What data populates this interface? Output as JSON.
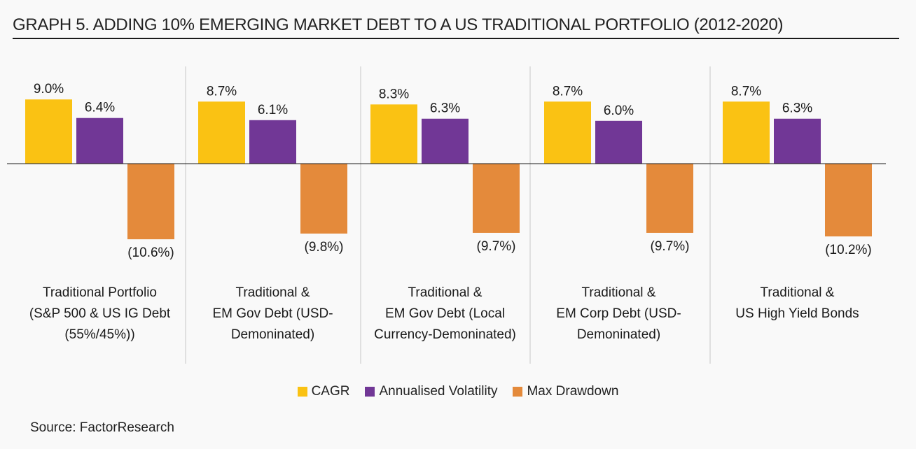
{
  "title": "GRAPH 5.  ADDING 10% EMERGING MARKET DEBT TO A US TRADITIONAL PORTFOLIO (2012-2020)",
  "source": "Source: FactorResearch",
  "colors": {
    "cagr": "#fac213",
    "volatility": "#713796",
    "drawdown": "#e48a3b",
    "divider": "#c8c8c8",
    "baseline": "#1a1a1a"
  },
  "chart_data": {
    "type": "bar",
    "title": "GRAPH 5.  ADDING 10% EMERGING MARKET DEBT TO A US TRADITIONAL PORTFOLIO (2012-2020)",
    "xlabel": "",
    "ylabel": "",
    "grid": false,
    "legend_position": "bottom-center",
    "ylim": [
      -11.5,
      9.5
    ],
    "units": "%",
    "categories": [
      [
        "Traditional Portfolio",
        "(S&P 500 & US IG Debt",
        "(55%/45%))"
      ],
      [
        "Traditional &",
        "EM Gov Debt (USD-",
        "Demoninated)"
      ],
      [
        "Traditional &",
        "EM Gov Debt (Local",
        "Currency-Demoninated)"
      ],
      [
        "Traditional &",
        "EM Corp Debt (USD-",
        "Demoninated)"
      ],
      [
        "Traditional &",
        "US High Yield Bonds"
      ]
    ],
    "series": [
      {
        "name": "CAGR",
        "color_key": "cagr",
        "values": [
          9.0,
          8.7,
          8.3,
          8.7,
          8.7
        ],
        "labels": [
          "9.0%",
          "8.7%",
          "8.3%",
          "8.7%",
          "8.7%"
        ]
      },
      {
        "name": "Annualised Volatility",
        "color_key": "volatility",
        "values": [
          6.4,
          6.1,
          6.3,
          6.0,
          6.3
        ],
        "labels": [
          "6.4%",
          "6.1%",
          "6.3%",
          "6.0%",
          "6.3%"
        ]
      },
      {
        "name": "Max Drawdown",
        "color_key": "drawdown",
        "values": [
          -10.6,
          -9.8,
          -9.7,
          -9.7,
          -10.2
        ],
        "labels": [
          "(10.6%)",
          "(9.8%)",
          "(9.7%)",
          "(9.7%)",
          "(10.2%)"
        ]
      }
    ]
  },
  "legend": {
    "items": [
      {
        "label": "CAGR",
        "color_key": "cagr"
      },
      {
        "label": "Annualised Volatility",
        "color_key": "volatility"
      },
      {
        "label": "Max Drawdown",
        "color_key": "drawdown"
      }
    ]
  }
}
